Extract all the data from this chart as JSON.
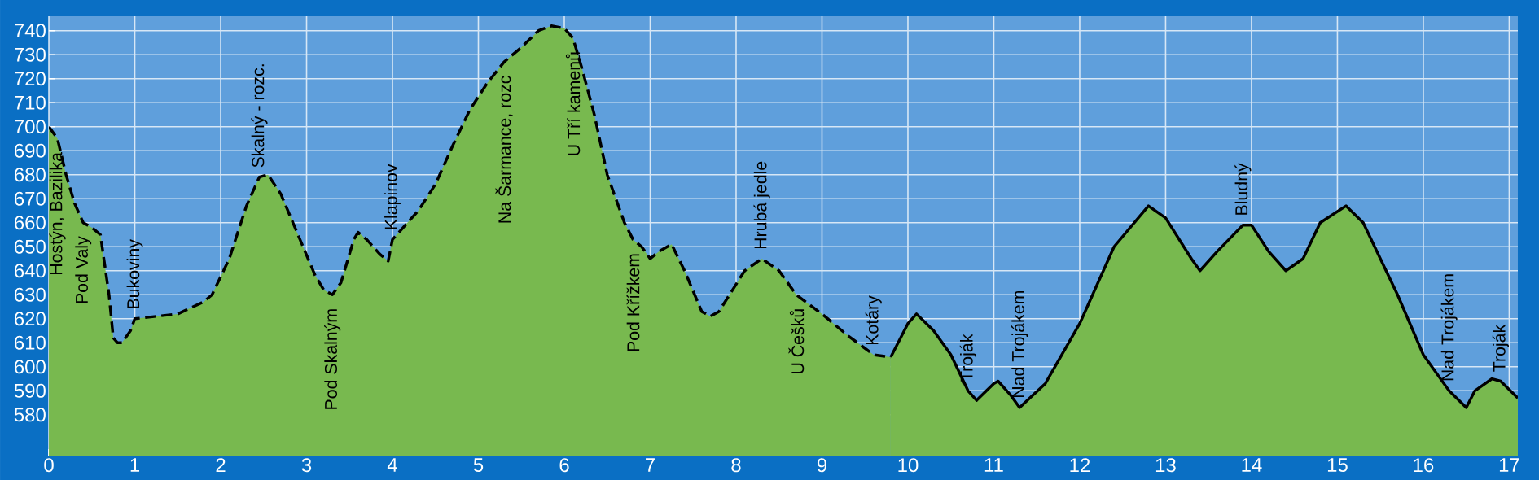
{
  "chart_data": {
    "type": "area",
    "xlim": [
      0,
      17.1
    ],
    "ylim": [
      563,
      746
    ],
    "xticks": [
      0,
      1,
      2,
      3,
      4,
      5,
      6,
      7,
      8,
      9,
      10,
      11,
      12,
      13,
      14,
      15,
      16,
      17
    ],
    "yticks": [
      580,
      590,
      600,
      610,
      620,
      630,
      640,
      650,
      660,
      670,
      680,
      690,
      700,
      710,
      720,
      730,
      740
    ],
    "grid": true,
    "series": [
      {
        "color": "#78b94f",
        "line_style": "dashed",
        "x": [
          0,
          0.1,
          0.2,
          0.3,
          0.4,
          0.5,
          0.6,
          0.7,
          0.75,
          0.8,
          0.85,
          0.95,
          1.0,
          1.5,
          1.8,
          1.9,
          2.1,
          2.3,
          2.45,
          2.55,
          2.7,
          2.9,
          3.1,
          3.2,
          3.3,
          3.4,
          3.55,
          3.6,
          3.7,
          3.85,
          3.95,
          4.0,
          4.1,
          4.3,
          4.5,
          4.7,
          4.9,
          5.1,
          5.3,
          5.5,
          5.7,
          5.85,
          6.0,
          6.1,
          6.2,
          6.35,
          6.5,
          6.7,
          6.8,
          6.9,
          7.0,
          7.1,
          7.25,
          7.4,
          7.6,
          7.7,
          7.8,
          8.1,
          8.3,
          8.5,
          8.7,
          9.0,
          9.3,
          9.6,
          9.8
        ],
        "values": [
          700,
          695,
          680,
          668,
          660,
          658,
          655,
          630,
          612,
          610,
          610,
          615,
          620,
          622,
          627,
          630,
          645,
          667,
          679,
          680,
          672,
          655,
          638,
          632,
          630,
          635,
          653,
          656,
          653,
          647,
          644,
          653,
          657,
          665,
          676,
          692,
          707,
          718,
          727,
          733,
          740,
          742,
          741,
          737,
          725,
          705,
          680,
          660,
          653,
          650,
          645,
          648,
          651,
          640,
          623,
          621,
          623,
          640,
          645,
          640,
          630,
          622,
          613,
          605,
          604
        ]
      },
      {
        "color": "#78b94f",
        "line_style": "solid",
        "x": [
          9.8,
          10.0,
          10.1,
          10.3,
          10.5,
          10.7,
          10.8,
          11.0,
          11.05,
          11.2,
          11.3,
          11.6,
          12.0,
          12.4,
          12.8,
          13.0,
          13.3,
          13.4,
          13.6,
          13.9,
          14.0,
          14.2,
          14.4,
          14.6,
          14.8,
          15.1,
          15.3,
          15.7,
          16.0,
          16.3,
          16.5,
          16.6,
          16.8,
          16.9,
          17.1
        ],
        "values": [
          604,
          618,
          622,
          615,
          605,
          590,
          586,
          593,
          594,
          588,
          583,
          593,
          618,
          650,
          667,
          662,
          645,
          640,
          648,
          659,
          659,
          648,
          640,
          645,
          660,
          667,
          660,
          630,
          605,
          590,
          583,
          590,
          595,
          594,
          587
        ]
      }
    ],
    "annotations": [
      {
        "text": "Hostýn, Bazilika",
        "x": 0.1,
        "y": 695
      },
      {
        "text": "Pod Valy",
        "x": 0.4,
        "y": 660
      },
      {
        "text": "Bukoviny",
        "x": 1.0,
        "y": 620
      },
      {
        "text": "Skalný - rozc.",
        "x": 2.45,
        "y": 679
      },
      {
        "text": "Pod Skalným",
        "x": 3.3,
        "y": 630
      },
      {
        "text": "Klapinov",
        "x": 4.0,
        "y": 653
      },
      {
        "text": "Na Šarmance, rozc",
        "x": 5.3,
        "y": 727
      },
      {
        "text": "U Tří kamenů",
        "x": 6.1,
        "y": 737
      },
      {
        "text": "Pod Křížkem",
        "x": 6.8,
        "y": 653
      },
      {
        "text": "Hrubá jedle",
        "x": 8.3,
        "y": 645
      },
      {
        "text": "U Češků",
        "x": 8.7,
        "y": 630
      },
      {
        "text": "Kotáry",
        "x": 9.6,
        "y": 605
      },
      {
        "text": "Troják",
        "x": 10.7,
        "y": 590
      },
      {
        "text": "Nad Trojákem",
        "x": 11.3,
        "y": 583
      },
      {
        "text": "Bludný",
        "x": 13.9,
        "y": 659
      },
      {
        "text": "Nad Trojákem",
        "x": 16.3,
        "y": 590
      },
      {
        "text": "Troják",
        "x": 16.9,
        "y": 594
      }
    ]
  }
}
